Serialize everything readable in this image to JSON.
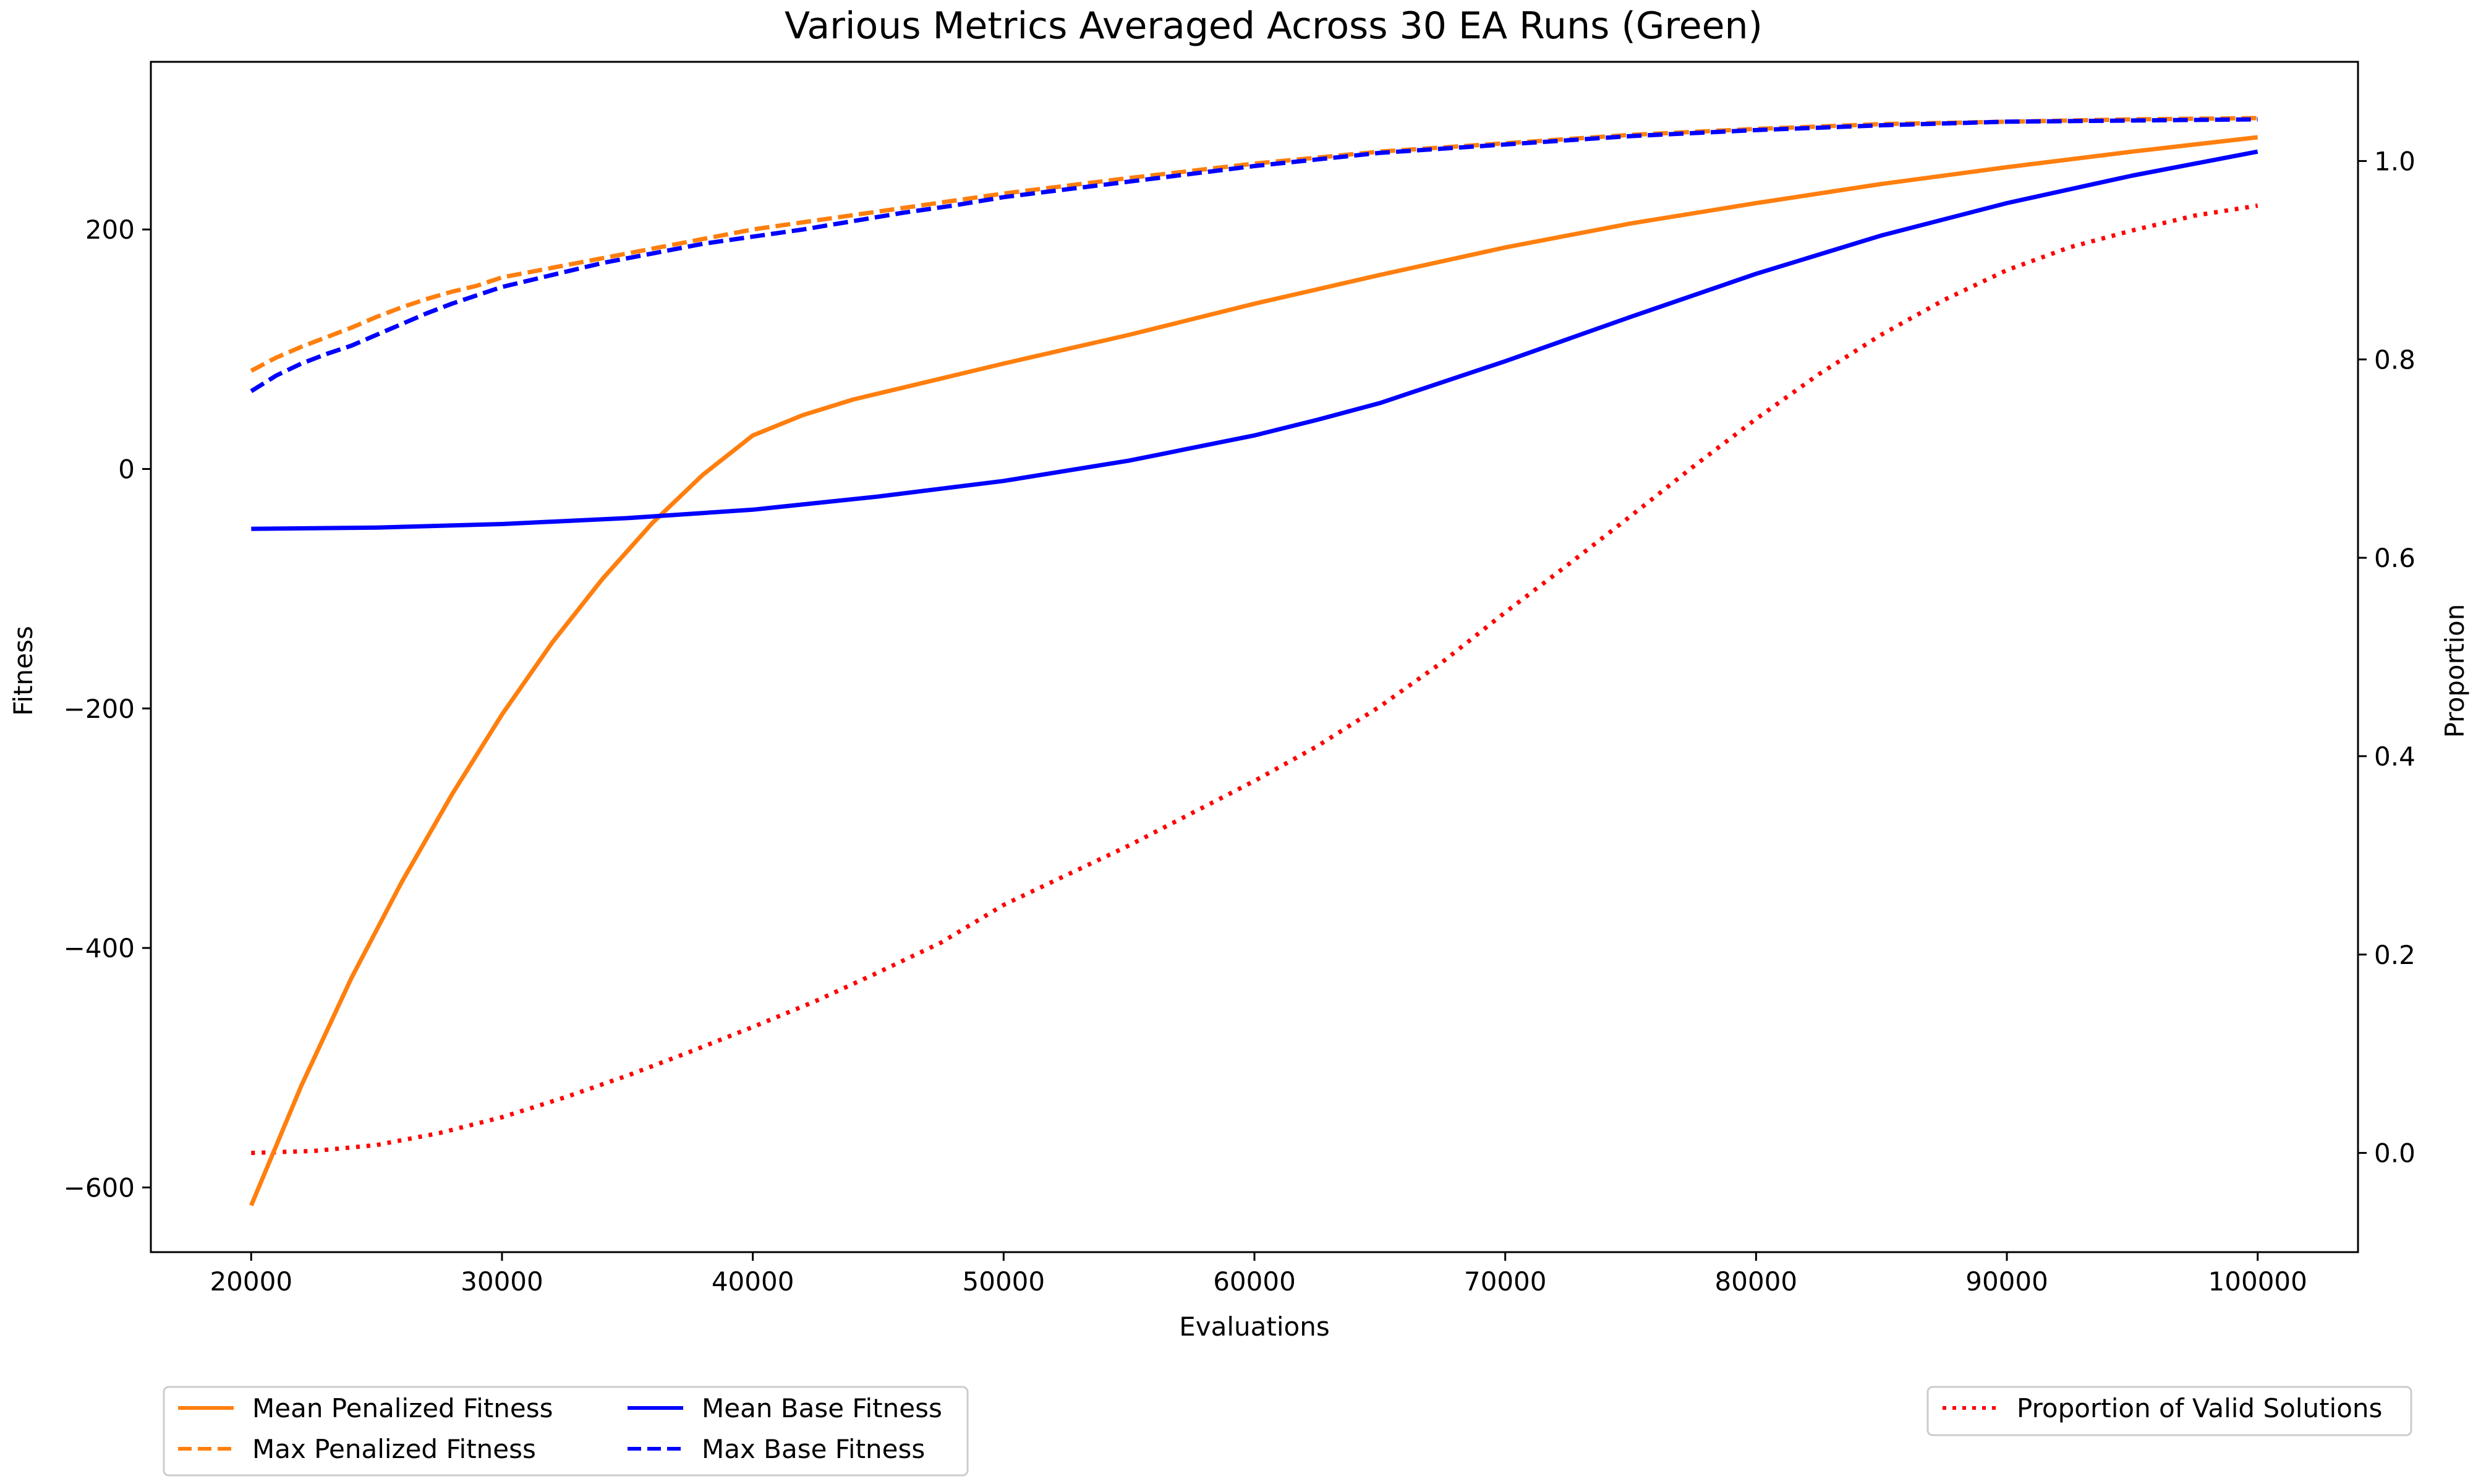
{
  "chart_data": {
    "type": "line",
    "title": "Various Metrics Averaged Across 30 EA Runs (Green)",
    "xlabel": "Evaluations",
    "ylabel_left": "Fitness",
    "ylabel_right": "Proportion",
    "xlim": [
      16000,
      104000
    ],
    "ylim_left": [
      -654,
      340
    ],
    "ylim_right": [
      -0.1,
      1.1
    ],
    "x_ticks": [
      20000,
      30000,
      40000,
      50000,
      60000,
      70000,
      80000,
      90000,
      100000
    ],
    "y_ticks_left": [
      200,
      0,
      -200,
      -400,
      -600
    ],
    "y_tick_labels_left": [
      "200",
      "0",
      "−200",
      "−400",
      "−600"
    ],
    "y_ticks_right": [
      1.0,
      0.8,
      0.6,
      0.4,
      0.2,
      0.0
    ],
    "y_tick_labels_right": [
      "1.0",
      "0.8",
      "0.6",
      "0.4",
      "0.2",
      "0.0"
    ],
    "grid": false,
    "legend_left": {
      "placement": "below-left",
      "entries": [
        {
          "label": "Mean Penalized Fitness",
          "color": "#ff7f0e",
          "style": "solid"
        },
        {
          "label": "Max Penalized Fitness",
          "color": "#ff7f0e",
          "style": "dashed"
        },
        {
          "label": "Mean Base Fitness",
          "color": "#0000ff",
          "style": "solid"
        },
        {
          "label": "Max Base Fitness",
          "color": "#0000ff",
          "style": "dashed"
        }
      ]
    },
    "legend_right": {
      "placement": "below-right",
      "entries": [
        {
          "label": "Proportion of Valid Solutions",
          "color": "#ff0000",
          "style": "dotted"
        }
      ]
    },
    "series": [
      {
        "name": "Mean Penalized Fitness",
        "axis": "left",
        "color": "#ff7f0e",
        "style": "solid",
        "x": [
          20000,
          22000,
          24000,
          26000,
          28000,
          30000,
          32000,
          34000,
          36000,
          38000,
          40000,
          42000,
          44000,
          46000,
          48000,
          50000,
          55000,
          60000,
          65000,
          70000,
          75000,
          80000,
          85000,
          90000,
          95000,
          100000
        ],
        "y": [
          -615,
          -515,
          -425,
          -345,
          -272,
          -205,
          -145,
          -92,
          -45,
          -5,
          28,
          45,
          58,
          68,
          78,
          88,
          112,
          138,
          162,
          185,
          205,
          222,
          238,
          252,
          265,
          277
        ]
      },
      {
        "name": "Max Penalized Fitness",
        "axis": "left",
        "color": "#ff7f0e",
        "style": "dashed",
        "x": [
          20000,
          21000,
          22000,
          23000,
          24000,
          25000,
          26000,
          27000,
          28000,
          29000,
          30000,
          32000,
          34000,
          36000,
          38000,
          40000,
          42000,
          44000,
          46000,
          48000,
          50000,
          55000,
          60000,
          65000,
          70000,
          75000,
          80000,
          85000,
          90000,
          95000,
          100000
        ],
        "y": [
          82,
          93,
          102,
          110,
          118,
          127,
          135,
          142,
          148,
          153,
          160,
          168,
          176,
          184,
          192,
          200,
          206,
          212,
          218,
          224,
          230,
          243,
          255,
          265,
          272,
          279,
          284,
          288,
          290,
          292,
          293
        ]
      },
      {
        "name": "Mean Base Fitness",
        "axis": "left",
        "color": "#0000ff",
        "style": "solid",
        "x": [
          20000,
          25000,
          30000,
          35000,
          40000,
          45000,
          50000,
          55000,
          60000,
          62500,
          65000,
          70000,
          75000,
          80000,
          85000,
          90000,
          95000,
          100000
        ],
        "y": [
          -50,
          -49,
          -46,
          -41,
          -34,
          -23,
          -10,
          7,
          28,
          41,
          55,
          90,
          127,
          163,
          195,
          222,
          245,
          265
        ]
      },
      {
        "name": "Max Base Fitness",
        "axis": "left",
        "color": "#0000ff",
        "style": "dashed",
        "x": [
          20000,
          21000,
          22000,
          23000,
          24000,
          25000,
          26000,
          27000,
          28000,
          29000,
          30000,
          32000,
          34000,
          36000,
          38000,
          40000,
          42000,
          44000,
          46000,
          48000,
          50000,
          55000,
          60000,
          65000,
          70000,
          75000,
          80000,
          85000,
          90000,
          95000,
          100000
        ],
        "y": [
          65,
          78,
          88,
          96,
          103,
          112,
          121,
          130,
          138,
          145,
          152,
          162,
          172,
          180,
          188,
          194,
          200,
          207,
          214,
          220,
          227,
          240,
          253,
          264,
          271,
          278,
          283,
          287,
          290,
          291,
          292
        ]
      },
      {
        "name": "Proportion of Valid Solutions",
        "axis": "right",
        "color": "#ff0000",
        "style": "dotted",
        "x": [
          20000,
          22500,
          25000,
          27500,
          30000,
          32500,
          35000,
          37500,
          40000,
          42500,
          45000,
          47500,
          50000,
          55000,
          60000,
          62500,
          65000,
          67500,
          70000,
          72500,
          75000,
          77500,
          80000,
          82500,
          85000,
          87500,
          90000,
          92500,
          95000,
          97500,
          100000
        ],
        "y": [
          0.0,
          0.002,
          0.008,
          0.02,
          0.036,
          0.056,
          0.078,
          0.102,
          0.127,
          0.153,
          0.182,
          0.212,
          0.25,
          0.31,
          0.375,
          0.41,
          0.45,
          0.495,
          0.545,
          0.593,
          0.642,
          0.692,
          0.74,
          0.785,
          0.825,
          0.86,
          0.89,
          0.913,
          0.93,
          0.945,
          0.955
        ]
      }
    ]
  }
}
